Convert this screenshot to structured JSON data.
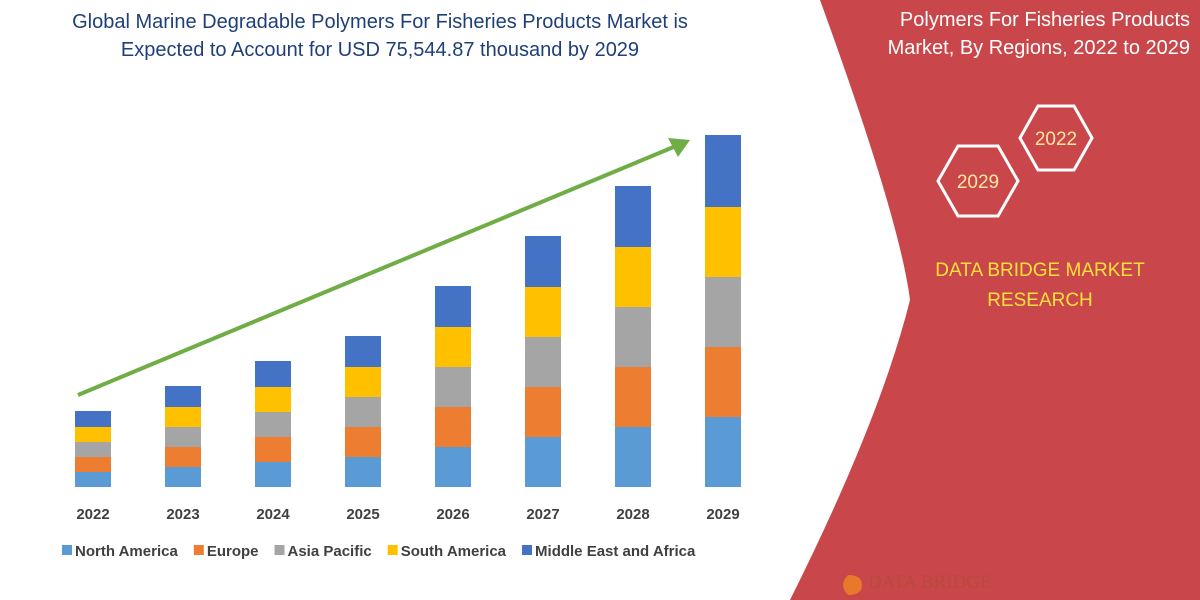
{
  "chart_data": {
    "type": "bar",
    "stacked": true,
    "title": "Global Marine Degradable Polymers For Fisheries Products Market is Expected to Account for USD 75,544.87 thousand by 2029",
    "categories": [
      "2022",
      "2023",
      "2024",
      "2025",
      "2026",
      "2027",
      "2028",
      "2029"
    ],
    "series": [
      {
        "name": "North America",
        "color": "#5b9bd5",
        "values": [
          15,
          20,
          25,
          30,
          40,
          50,
          60,
          70
        ]
      },
      {
        "name": "Europe",
        "color": "#ed7d31",
        "values": [
          15,
          20,
          25,
          30,
          40,
          50,
          60,
          70
        ]
      },
      {
        "name": "Asia Pacific",
        "color": "#a5a5a5",
        "values": [
          15,
          20,
          25,
          30,
          40,
          50,
          60,
          70
        ]
      },
      {
        "name": "South America",
        "color": "#ffc000",
        "values": [
          15,
          20,
          25,
          30,
          40,
          50,
          60,
          70
        ]
      },
      {
        "name": "Middle East and Africa",
        "color": "#4472c4",
        "values": [
          16,
          21,
          26,
          31,
          41,
          51,
          61,
          72
        ]
      }
    ]
  },
  "side_panel": {
    "title": "Polymers For Fisheries Products Market, By Regions, 2022 to 2029",
    "hexagons": [
      "2022",
      "2029"
    ],
    "brand": "DATA BRIDGE MARKET RESEARCH",
    "logo": "DATA BRIDGE"
  }
}
